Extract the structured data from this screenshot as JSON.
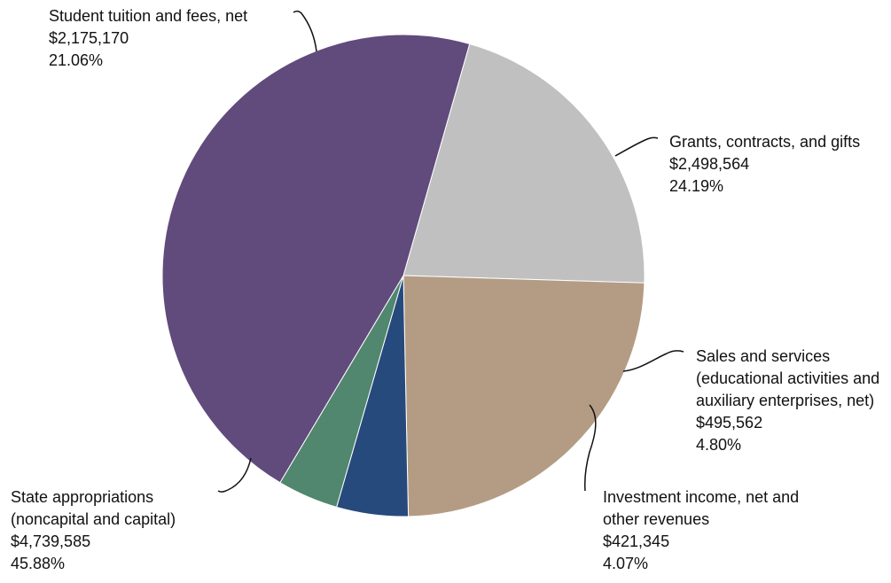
{
  "chart_data": {
    "type": "pie",
    "title": "",
    "slices": [
      {
        "key": "tuition",
        "label_lines": [
          "Student tuition and fees, net"
        ],
        "amount": "$2,175,170",
        "percent": "21.06%",
        "value": 2175170,
        "color": "#c0c0c0"
      },
      {
        "key": "grants",
        "label_lines": [
          "Grants, contracts, and gifts"
        ],
        "amount": "$2,498,564",
        "percent": "24.19%",
        "value": 2498564,
        "color": "#b49c84"
      },
      {
        "key": "sales",
        "label_lines": [
          "Sales and services",
          "(educational activities and",
          "auxiliary enterprises, net)"
        ],
        "amount": "$495,562",
        "percent": "4.80%",
        "value": 495562,
        "color": "#264a7c"
      },
      {
        "key": "investment",
        "label_lines": [
          "Investment income, net and",
          "other revenues"
        ],
        "amount": "$421,345",
        "percent": "4.07%",
        "value": 421345,
        "color": "#50876e"
      },
      {
        "key": "state",
        "label_lines": [
          "State appropriations",
          "(noncapital and capital)"
        ],
        "amount": "$4,739,585",
        "percent": "45.88%",
        "value": 4739585,
        "color": "#614a7c"
      }
    ]
  }
}
